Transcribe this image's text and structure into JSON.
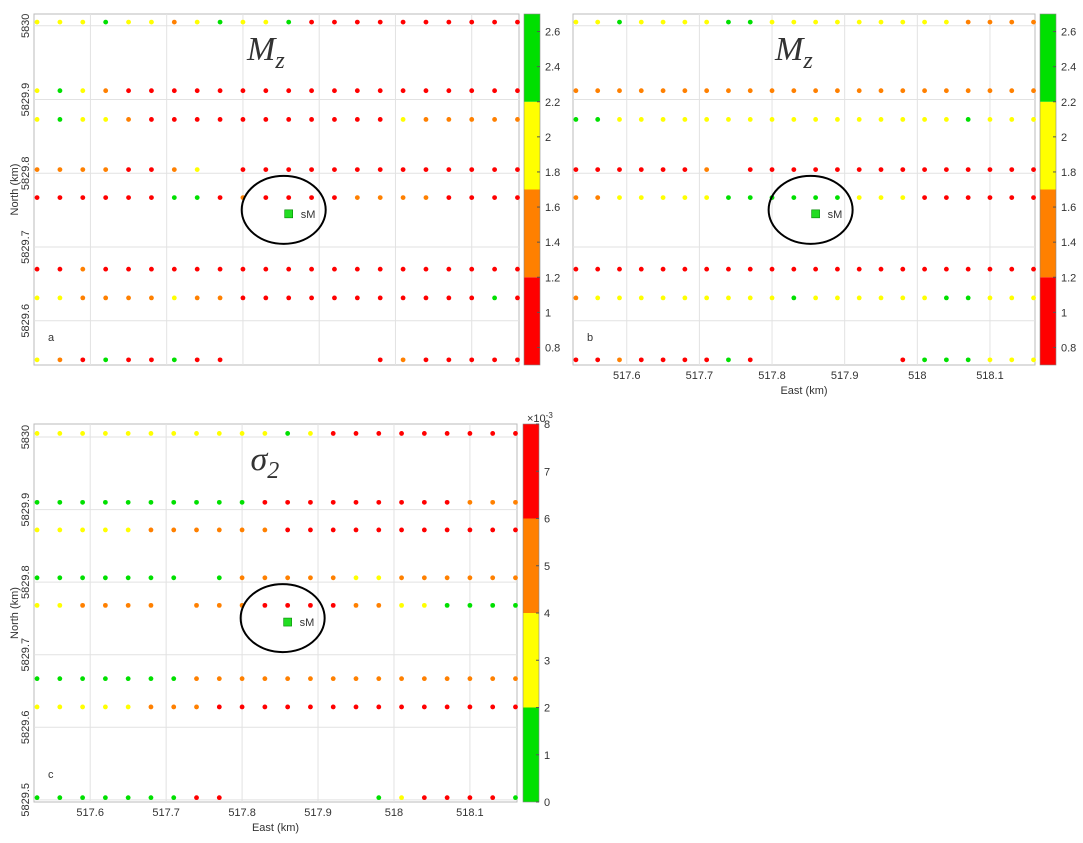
{
  "chart_data": [
    {
      "type": "scatter",
      "panel_label": "a",
      "title": "M",
      "title_subscript": "z",
      "ylabel": "North (km)",
      "xlim": [
        517.526,
        518.162
      ],
      "ylim": [
        5829.54,
        5830.016
      ],
      "xticks": [
        517.6,
        517.7,
        517.8,
        517.9,
        518,
        518.1
      ],
      "show_xtick_labels": false,
      "show_ytick_labels": true,
      "yticks": [
        5829.6,
        5829.7,
        5829.8,
        5829.9,
        5830
      ],
      "grid": true,
      "x": [
        517.53,
        517.56,
        517.59,
        517.62,
        517.65,
        517.68,
        517.71,
        517.74,
        517.77,
        517.8,
        517.83,
        517.86,
        517.89,
        517.92,
        517.95,
        517.98,
        518.01,
        518.04,
        518.07,
        518.1,
        518.13,
        518.16
      ],
      "series": [
        {
          "y": 5830.005,
          "values": [
            2.0,
            2.0,
            2.0,
            2.4,
            2.0,
            2.0,
            1.5,
            2.0,
            2.4,
            2.0,
            2.0,
            2.4,
            1.0,
            1.0,
            1.0,
            1.0,
            1.0,
            1.0,
            1.0,
            1.0,
            1.0,
            1.0
          ]
        },
        {
          "y": 5829.912,
          "values": [
            2.0,
            2.4,
            2.0,
            1.5,
            1.0,
            1.0,
            1.0,
            1.0,
            1.0,
            1.0,
            1.0,
            1.0,
            1.0,
            1.0,
            1.0,
            1.0,
            1.0,
            1.0,
            1.0,
            1.0,
            1.0,
            1.0
          ]
        },
        {
          "y": 5829.873,
          "values": [
            2.0,
            2.4,
            2.0,
            2.0,
            1.5,
            1.0,
            1.0,
            1.0,
            1.0,
            1.0,
            1.0,
            1.0,
            1.0,
            1.0,
            1.0,
            1.0,
            2.0,
            1.5,
            1.5,
            1.5,
            1.5,
            1.5
          ]
        },
        {
          "y": 5829.805,
          "values": [
            1.5,
            1.5,
            1.5,
            1.5,
            1.0,
            1.0,
            1.5,
            2.0,
            null,
            1.0,
            1.0,
            1.0,
            1.0,
            1.0,
            1.0,
            1.0,
            1.0,
            1.0,
            1.0,
            1.0,
            1.0,
            1.0
          ]
        },
        {
          "y": 5829.767,
          "values": [
            1.0,
            1.0,
            1.0,
            1.0,
            1.0,
            1.0,
            2.4,
            2.4,
            1.0,
            1.5,
            1.0,
            1.0,
            1.0,
            1.0,
            1.5,
            1.5,
            1.5,
            1.5,
            1.0,
            1.0,
            1.0,
            1.0
          ]
        },
        {
          "y": 5829.67,
          "values": [
            1.0,
            1.0,
            1.5,
            1.0,
            1.0,
            1.0,
            1.0,
            1.0,
            1.0,
            1.0,
            1.0,
            1.0,
            1.0,
            1.0,
            1.0,
            1.0,
            1.0,
            1.0,
            1.0,
            1.0,
            1.0,
            1.0
          ]
        },
        {
          "y": 5829.631,
          "values": [
            2.0,
            2.0,
            1.5,
            1.5,
            1.5,
            1.5,
            2.0,
            1.5,
            1.5,
            1.0,
            1.0,
            1.0,
            1.0,
            1.0,
            1.0,
            1.0,
            1.0,
            1.0,
            1.0,
            1.0,
            2.4,
            1.0
          ]
        },
        {
          "y": 5829.547,
          "values": [
            2.0,
            1.5,
            1.0,
            2.4,
            1.0,
            1.0,
            2.4,
            1.0,
            1.0,
            null,
            null,
            null,
            null,
            null,
            null,
            1.0,
            1.5,
            1.0,
            1.0,
            1.0,
            1.0,
            1.0
          ]
        }
      ],
      "station": {
        "label": "sM",
        "x": 517.86,
        "y": 5829.745,
        "color": "#22dd22"
      },
      "colorbar": {
        "ylim": [
          0.7,
          2.7
        ],
        "yticks": [
          0.8,
          1,
          1.2,
          1.4,
          1.6,
          1.8,
          2,
          2.2,
          2.4,
          2.6
        ],
        "bounds": [
          0.7,
          1.2,
          1.7,
          2.2,
          2.7
        ],
        "colors": [
          "#ff0000",
          "#ff8000",
          "#ffff00",
          "#00e000"
        ]
      }
    },
    {
      "type": "scatter",
      "panel_label": "b",
      "title": "M",
      "title_subscript": "z",
      "xlabel": "East (km)",
      "xlim": [
        517.526,
        518.162
      ],
      "ylim": [
        5829.54,
        5830.016
      ],
      "xticks": [
        517.6,
        517.7,
        517.8,
        517.9,
        518,
        518.1
      ],
      "show_xtick_labels": true,
      "show_ytick_labels": false,
      "yticks": [
        5829.6,
        5829.7,
        5829.8,
        5829.9,
        5830
      ],
      "grid": true,
      "x": [
        517.53,
        517.56,
        517.59,
        517.62,
        517.65,
        517.68,
        517.71,
        517.74,
        517.77,
        517.8,
        517.83,
        517.86,
        517.89,
        517.92,
        517.95,
        517.98,
        518.01,
        518.04,
        518.07,
        518.1,
        518.13,
        518.16
      ],
      "series": [
        {
          "y": 5830.005,
          "values": [
            2.0,
            2.0,
            2.4,
            2.0,
            2.0,
            2.0,
            2.0,
            2.4,
            2.4,
            2.0,
            2.0,
            2.0,
            2.0,
            2.0,
            2.0,
            2.0,
            2.0,
            2.0,
            1.5,
            1.5,
            1.5,
            1.5
          ]
        },
        {
          "y": 5829.912,
          "values": [
            1.5,
            1.5,
            1.5,
            1.5,
            1.5,
            1.5,
            1.5,
            1.5,
            1.5,
            1.5,
            1.5,
            1.5,
            1.5,
            1.5,
            1.5,
            1.5,
            1.5,
            1.5,
            1.5,
            1.5,
            1.5,
            1.5
          ]
        },
        {
          "y": 5829.873,
          "values": [
            2.4,
            2.4,
            2.0,
            2.0,
            2.0,
            2.0,
            2.0,
            2.0,
            2.0,
            2.0,
            2.0,
            2.0,
            2.0,
            2.0,
            2.0,
            2.0,
            2.0,
            2.0,
            2.4,
            2.0,
            2.0,
            2.0
          ]
        },
        {
          "y": 5829.805,
          "values": [
            1.0,
            1.0,
            1.0,
            1.0,
            1.0,
            1.0,
            1.5,
            null,
            1.0,
            1.0,
            1.0,
            1.0,
            1.0,
            1.0,
            1.0,
            1.0,
            1.0,
            1.0,
            1.0,
            1.0,
            1.0,
            1.0
          ]
        },
        {
          "y": 5829.767,
          "values": [
            1.5,
            1.5,
            2.0,
            2.0,
            2.0,
            2.0,
            2.0,
            2.4,
            2.4,
            2.4,
            2.4,
            2.4,
            2.4,
            2.0,
            2.0,
            2.0,
            1.0,
            1.0,
            1.0,
            1.0,
            1.0,
            1.0
          ]
        },
        {
          "y": 5829.67,
          "values": [
            1.0,
            1.0,
            1.0,
            1.0,
            1.0,
            1.0,
            1.0,
            1.0,
            1.0,
            1.0,
            1.0,
            1.0,
            1.0,
            1.0,
            1.0,
            1.0,
            1.0,
            1.0,
            1.0,
            1.0,
            1.0,
            1.0
          ]
        },
        {
          "y": 5829.631,
          "values": [
            1.5,
            2.0,
            2.0,
            2.0,
            2.0,
            2.0,
            2.0,
            2.0,
            2.0,
            2.0,
            2.4,
            2.0,
            2.0,
            2.0,
            2.0,
            2.0,
            2.0,
            2.4,
            2.4,
            2.0,
            2.0,
            2.0
          ]
        },
        {
          "y": 5829.547,
          "values": [
            1.0,
            1.0,
            1.5,
            1.0,
            1.0,
            1.0,
            1.0,
            2.4,
            1.0,
            null,
            null,
            null,
            null,
            null,
            null,
            1.0,
            2.4,
            2.4,
            2.4,
            2.0,
            2.0,
            2.0
          ]
        }
      ],
      "station": {
        "label": "sM",
        "x": 517.86,
        "y": 5829.745,
        "color": "#22dd22"
      },
      "colorbar": {
        "ylim": [
          0.7,
          2.7
        ],
        "yticks": [
          0.8,
          1,
          1.2,
          1.4,
          1.6,
          1.8,
          2,
          2.2,
          2.4,
          2.6
        ],
        "bounds": [
          0.7,
          1.2,
          1.7,
          2.2,
          2.7
        ],
        "colors": [
          "#ff0000",
          "#ff8000",
          "#ffff00",
          "#00e000"
        ]
      }
    },
    {
      "type": "scatter",
      "panel_label": "c",
      "title": "σ",
      "title_subscript": "2",
      "ylabel": "North (km)",
      "xlabel": "East (km)",
      "xlim": [
        517.526,
        518.162
      ],
      "ylim": [
        5829.497,
        5830.018
      ],
      "xticks": [
        517.6,
        517.7,
        517.8,
        517.9,
        518,
        518.1
      ],
      "show_xtick_labels": true,
      "show_ytick_labels": true,
      "yticks": [
        5829.5,
        5829.6,
        5829.7,
        5829.8,
        5829.9,
        5830
      ],
      "grid": true,
      "x": [
        517.53,
        517.56,
        517.59,
        517.62,
        517.65,
        517.68,
        517.71,
        517.74,
        517.77,
        517.8,
        517.83,
        517.86,
        517.89,
        517.92,
        517.95,
        517.98,
        518.01,
        518.04,
        518.07,
        518.1,
        518.13,
        518.16
      ],
      "series": [
        {
          "y": 5830.005,
          "values": [
            3,
            3,
            3,
            3,
            3,
            3,
            3,
            3,
            3,
            3,
            3,
            1,
            3,
            7,
            7,
            7,
            7,
            7,
            7,
            7,
            7,
            7
          ]
        },
        {
          "y": 5829.91,
          "values": [
            1,
            1,
            1,
            1,
            1,
            1,
            1,
            1,
            1,
            1,
            7,
            7,
            7,
            7,
            7,
            7,
            7,
            7,
            7,
            5,
            5,
            5
          ]
        },
        {
          "y": 5829.872,
          "values": [
            3,
            3,
            3,
            3,
            3,
            5,
            5,
            5,
            5,
            5,
            5,
            7,
            7,
            7,
            7,
            7,
            7,
            7,
            7,
            7,
            7,
            7
          ]
        },
        {
          "y": 5829.806,
          "values": [
            1,
            1,
            1,
            1,
            1,
            1,
            1,
            null,
            1,
            5,
            5,
            5,
            5,
            5,
            3,
            3,
            5,
            5,
            5,
            5,
            5,
            5
          ]
        },
        {
          "y": 5829.768,
          "values": [
            3,
            3,
            5,
            5,
            5,
            5,
            null,
            5,
            5,
            5,
            7,
            7,
            7,
            7,
            5,
            5,
            3,
            3,
            1,
            1,
            1,
            1
          ]
        },
        {
          "y": 5829.667,
          "values": [
            1,
            1,
            1,
            1,
            1,
            1,
            1,
            5,
            5,
            5,
            5,
            5,
            5,
            5,
            5,
            5,
            5,
            5,
            5,
            5,
            5,
            5
          ]
        },
        {
          "y": 5829.628,
          "values": [
            3,
            3,
            3,
            3,
            3,
            5,
            5,
            5,
            7,
            7,
            7,
            7,
            7,
            7,
            7,
            7,
            7,
            7,
            7,
            7,
            7,
            7
          ]
        },
        {
          "y": 5829.503,
          "values": [
            1,
            1,
            1,
            1,
            1,
            1,
            1,
            7,
            7,
            null,
            null,
            null,
            null,
            null,
            null,
            1,
            3,
            7,
            7,
            7,
            7,
            1
          ]
        }
      ],
      "station": {
        "label": "sM",
        "x": 517.86,
        "y": 5829.745,
        "color": "#22dd22"
      },
      "colorbar": {
        "ylim": [
          0,
          8
        ],
        "yticks": [
          0,
          1,
          2,
          3,
          4,
          5,
          6,
          7,
          8
        ],
        "exponent_base": "×10",
        "exponent": "-3",
        "bounds": [
          0,
          2,
          4,
          6,
          8
        ],
        "colors": [
          "#00e000",
          "#ffff00",
          "#ff8000",
          "#ff0000"
        ]
      }
    }
  ]
}
